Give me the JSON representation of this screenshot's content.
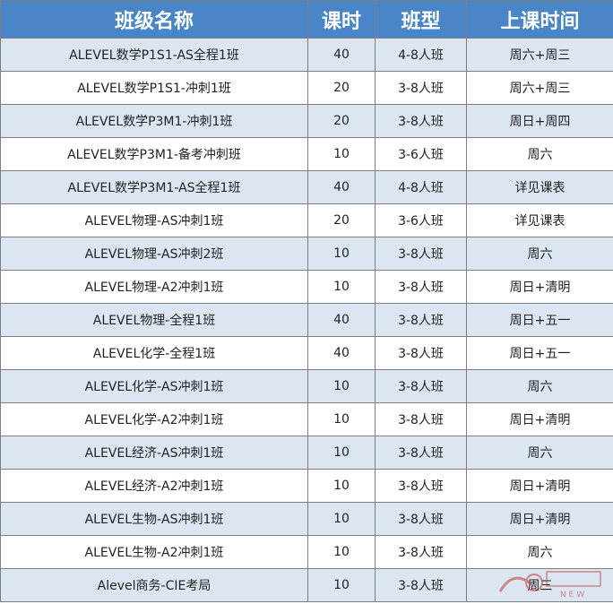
{
  "table": {
    "headers": [
      "班级名称",
      "课时",
      "班型",
      "上课时间"
    ],
    "rows": [
      {
        "name": "ALEVEL数学P1S1-AS全程1班",
        "hours": "40",
        "size": "4-8人班",
        "time": "周六+周三"
      },
      {
        "name": "ALEVEL数学P1S1-冲刺1班",
        "hours": "20",
        "size": "3-8人班",
        "time": "周六+周三"
      },
      {
        "name": "ALEVEL数学P3M1-冲刺1班",
        "hours": "20",
        "size": "3-8人班",
        "time": "周日+周四"
      },
      {
        "name": "ALEVEL数学P3M1-备考冲刺班",
        "hours": "10",
        "size": "3-6人班",
        "time": "周六"
      },
      {
        "name": "ALEVEL数学P3M1-AS全程1班",
        "hours": "40",
        "size": "4-8人班",
        "time": "详见课表"
      },
      {
        "name": "ALEVEL物理-AS冲刺1班",
        "hours": "20",
        "size": "3-6人班",
        "time": "详见课表"
      },
      {
        "name": "ALEVEL物理-AS冲刺2班",
        "hours": "10",
        "size": "3-8人班",
        "time": "周六"
      },
      {
        "name": "ALEVEL物理-A2冲刺1班",
        "hours": "10",
        "size": "3-8人班",
        "time": "周日+清明"
      },
      {
        "name": "ALEVEL物理-全程1班",
        "hours": "40",
        "size": "3-8人班",
        "time": "周日+五一"
      },
      {
        "name": "ALEVEL化学-全程1班",
        "hours": "40",
        "size": "3-8人班",
        "time": "周日+五一"
      },
      {
        "name": "ALEVEL化学-AS冲刺1班",
        "hours": "10",
        "size": "3-8人班",
        "time": "周六"
      },
      {
        "name": "ALEVEL化学-A2冲刺1班",
        "hours": "10",
        "size": "3-8人班",
        "time": "周日+清明"
      },
      {
        "name": "ALEVEL经济-AS冲刺1班",
        "hours": "10",
        "size": "3-8人班",
        "time": "周六"
      },
      {
        "name": "ALEVEL经济-A2冲刺1班",
        "hours": "10",
        "size": "3-8人班",
        "time": "周日+清明"
      },
      {
        "name": "ALEVEL生物-AS冲刺1班",
        "hours": "10",
        "size": "3-8人班",
        "time": "周日+清明"
      },
      {
        "name": "ALEVEL生物-A2冲刺1班",
        "hours": "10",
        "size": "3-8人班",
        "time": "周六"
      },
      {
        "name": "Alevel商务-CIE考局",
        "hours": "10",
        "size": "3-8人班",
        "time": "周三"
      }
    ]
  },
  "watermark": {
    "text": "NEW",
    "icon": "brand-logo-icon"
  }
}
